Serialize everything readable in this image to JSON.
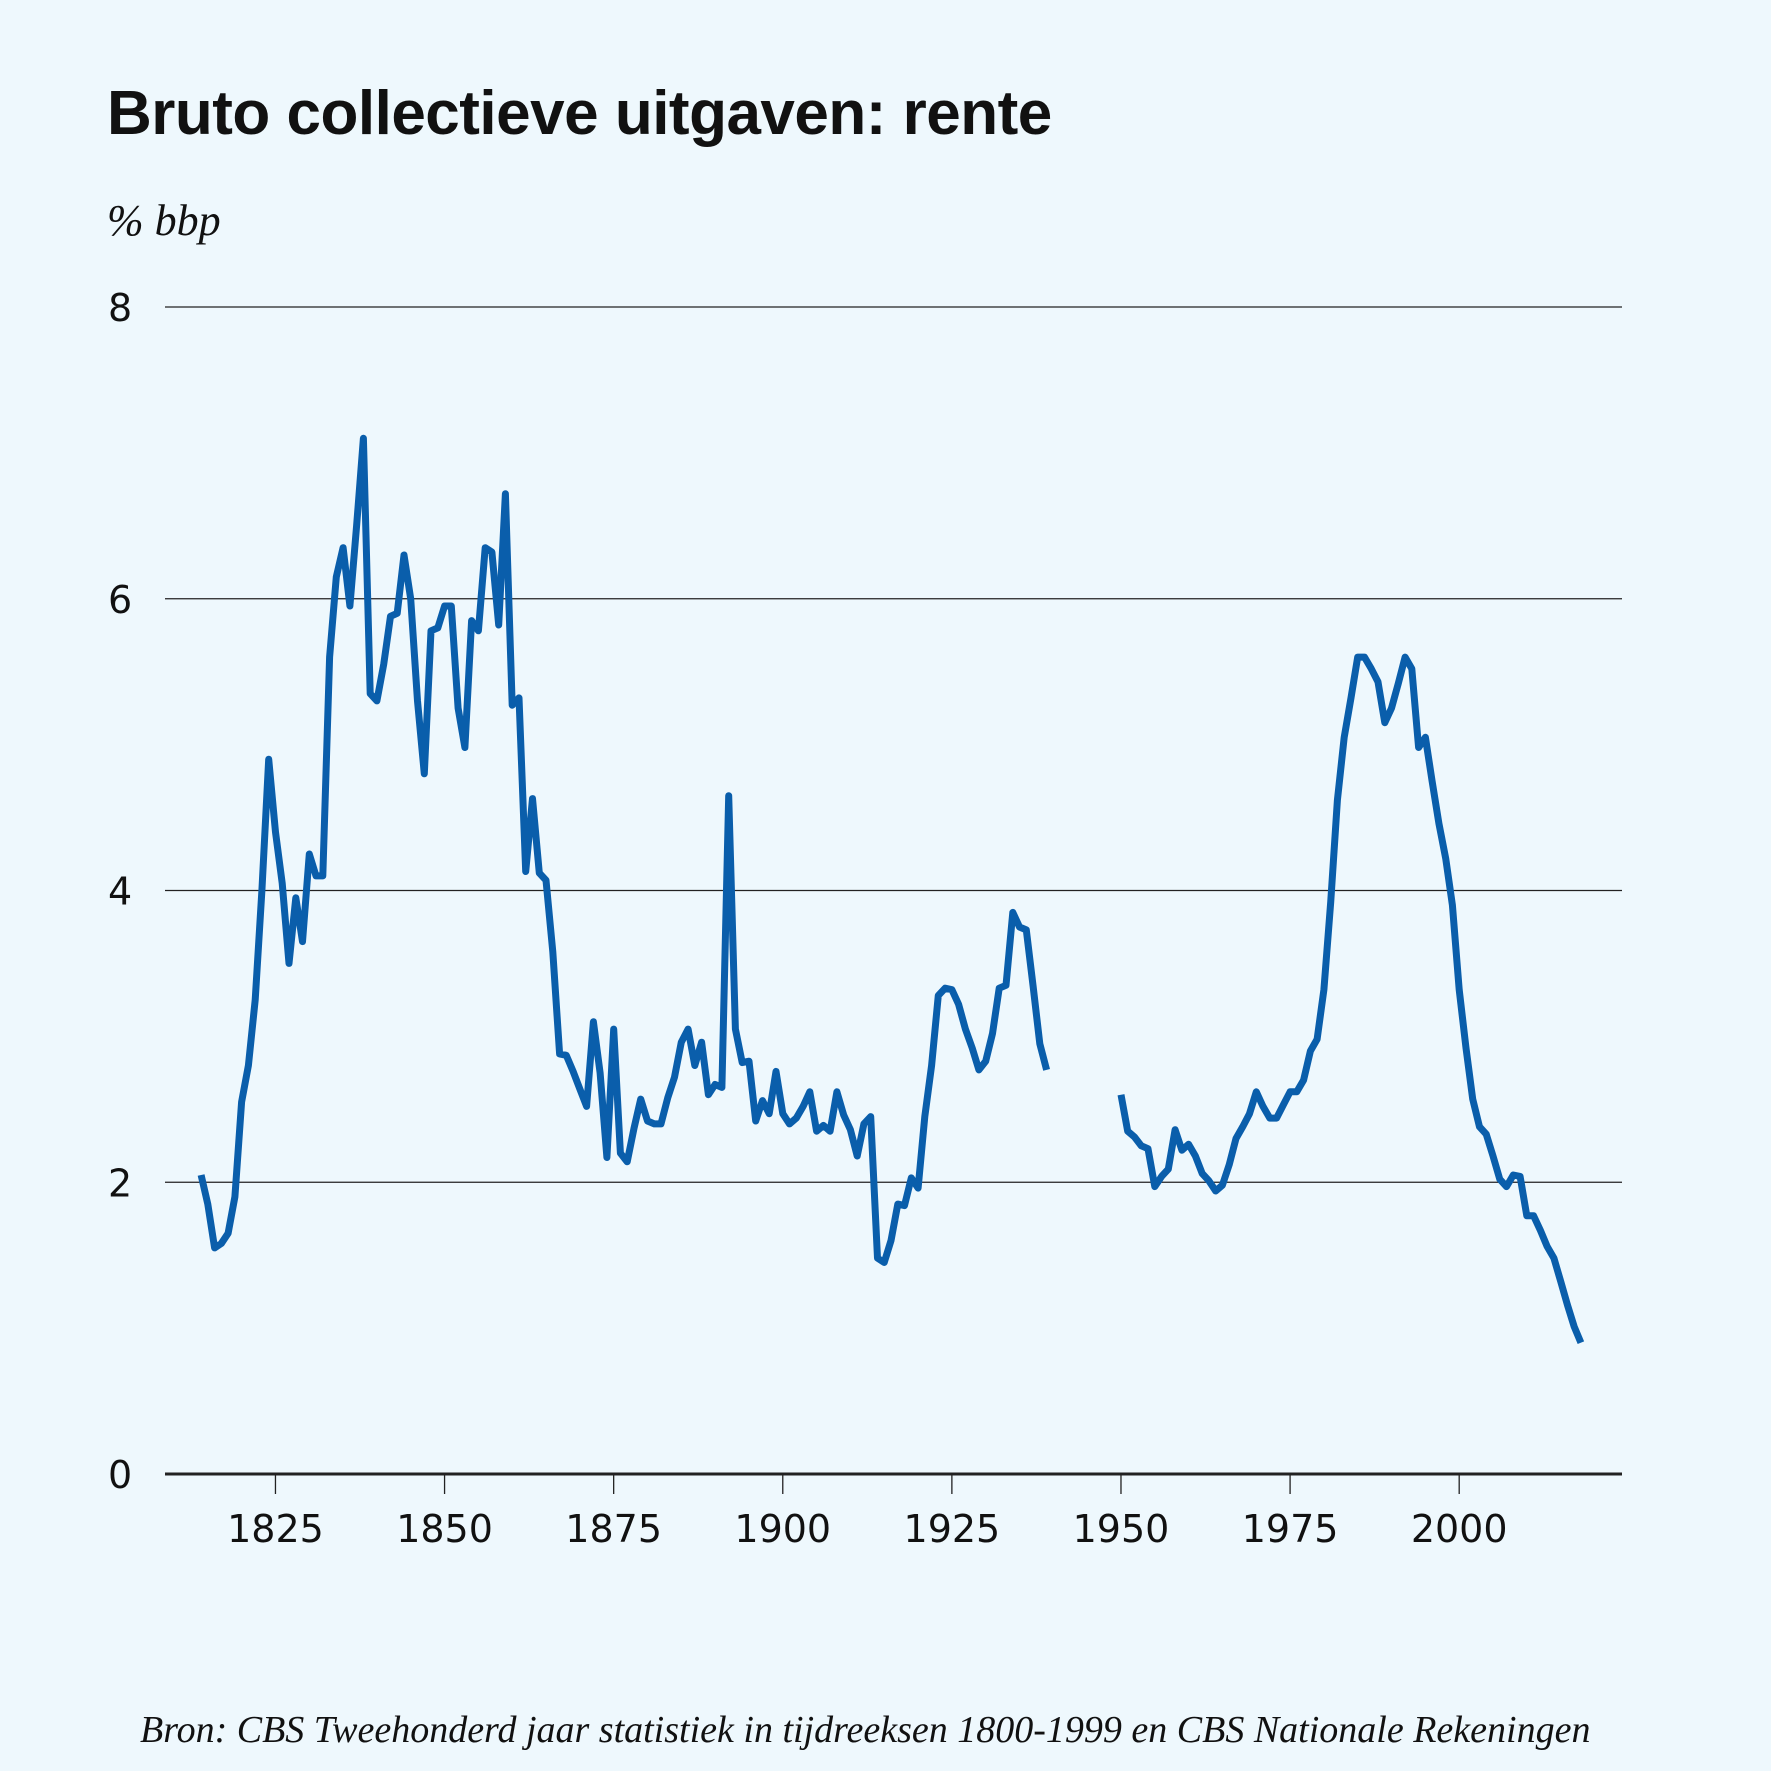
{
  "title": "Bruto collectieve uitgaven: rente",
  "unit_label": "% bbp",
  "source": "Bron: CBS Tweehonderd jaar statistiek in tijdreeksen 1800-1999 en CBS Nationale Rekeningen",
  "colors": {
    "background": "#eef8fd",
    "line": "#0a5eab",
    "grid": "#222222"
  },
  "chart_data": {
    "type": "line",
    "title": "Bruto collectieve uitgaven: rente",
    "xlabel": "",
    "ylabel": "% bbp",
    "xlim": [
      1810,
      2022
    ],
    "ylim": [
      0,
      8
    ],
    "x_ticks": [
      1825,
      1850,
      1875,
      1900,
      1925,
      1950,
      1975,
      2000
    ],
    "y_ticks": [
      0,
      2,
      4,
      6,
      8
    ],
    "grid": "horizontal",
    "legend": "none",
    "series": [
      {
        "segments": [
          [
            [
              1814,
              2.05
            ],
            [
              1815,
              1.85
            ],
            [
              1816,
              1.55
            ],
            [
              1817,
              1.58
            ],
            [
              1818,
              1.65
            ],
            [
              1819,
              1.9
            ],
            [
              1820,
              2.55
            ],
            [
              1821,
              2.8
            ],
            [
              1822,
              3.25
            ],
            [
              1823,
              4.0
            ],
            [
              1824,
              4.9
            ],
            [
              1825,
              4.4
            ],
            [
              1826,
              4.05
            ],
            [
              1827,
              3.5
            ],
            [
              1828,
              3.95
            ],
            [
              1829,
              3.65
            ],
            [
              1830,
              4.25
            ],
            [
              1831,
              4.1
            ],
            [
              1832,
              4.1
            ],
            [
              1833,
              5.6
            ],
            [
              1834,
              6.15
            ],
            [
              1835,
              6.35
            ],
            [
              1836,
              5.95
            ],
            [
              1837,
              6.5
            ],
            [
              1838,
              7.1
            ],
            [
              1839,
              5.35
            ],
            [
              1840,
              5.3
            ],
            [
              1841,
              5.55
            ],
            [
              1842,
              5.88
            ],
            [
              1843,
              5.9
            ],
            [
              1844,
              6.3
            ],
            [
              1845,
              6.0
            ],
            [
              1846,
              5.3
            ],
            [
              1847,
              4.8
            ],
            [
              1848,
              5.78
            ],
            [
              1849,
              5.8
            ],
            [
              1850,
              5.95
            ],
            [
              1851,
              5.95
            ],
            [
              1852,
              5.25
            ],
            [
              1853,
              4.98
            ],
            [
              1854,
              5.85
            ],
            [
              1855,
              5.78
            ],
            [
              1856,
              6.35
            ],
            [
              1857,
              6.32
            ],
            [
              1858,
              5.82
            ],
            [
              1859,
              6.72
            ],
            [
              1860,
              5.27
            ],
            [
              1861,
              5.32
            ],
            [
              1862,
              4.13
            ],
            [
              1863,
              4.63
            ],
            [
              1864,
              4.12
            ],
            [
              1865,
              4.07
            ],
            [
              1866,
              3.58
            ],
            [
              1867,
              2.88
            ],
            [
              1868,
              2.87
            ],
            [
              1869,
              2.76
            ],
            [
              1870,
              2.64
            ],
            [
              1871,
              2.52
            ],
            [
              1872,
              3.1
            ],
            [
              1873,
              2.75
            ],
            [
              1874,
              2.17
            ],
            [
              1875,
              3.05
            ],
            [
              1876,
              2.2
            ],
            [
              1877,
              2.14
            ],
            [
              1878,
              2.37
            ],
            [
              1879,
              2.57
            ],
            [
              1880,
              2.42
            ],
            [
              1881,
              2.4
            ],
            [
              1882,
              2.4
            ],
            [
              1883,
              2.58
            ],
            [
              1884,
              2.72
            ],
            [
              1885,
              2.96
            ],
            [
              1886,
              3.05
            ],
            [
              1887,
              2.8
            ],
            [
              1888,
              2.96
            ],
            [
              1889,
              2.6
            ],
            [
              1890,
              2.67
            ],
            [
              1891,
              2.65
            ],
            [
              1892,
              4.65
            ],
            [
              1893,
              3.05
            ],
            [
              1894,
              2.82
            ],
            [
              1895,
              2.83
            ],
            [
              1896,
              2.42
            ],
            [
              1897,
              2.56
            ],
            [
              1898,
              2.47
            ],
            [
              1899,
              2.76
            ],
            [
              1900,
              2.47
            ],
            [
              1901,
              2.4
            ],
            [
              1902,
              2.44
            ],
            [
              1903,
              2.52
            ],
            [
              1904,
              2.62
            ],
            [
              1905,
              2.35
            ],
            [
              1906,
              2.39
            ],
            [
              1907,
              2.35
            ],
            [
              1908,
              2.62
            ],
            [
              1909,
              2.46
            ],
            [
              1910,
              2.36
            ],
            [
              1911,
              2.18
            ],
            [
              1912,
              2.4
            ],
            [
              1913,
              2.45
            ],
            [
              1914,
              1.48
            ],
            [
              1915,
              1.45
            ],
            [
              1916,
              1.6
            ],
            [
              1917,
              1.85
            ],
            [
              1918,
              1.84
            ],
            [
              1919,
              2.03
            ],
            [
              1920,
              1.96
            ],
            [
              1921,
              2.45
            ],
            [
              1922,
              2.8
            ],
            [
              1923,
              3.28
            ],
            [
              1924,
              3.33
            ],
            [
              1925,
              3.32
            ],
            [
              1926,
              3.22
            ],
            [
              1927,
              3.05
            ],
            [
              1928,
              2.92
            ],
            [
              1929,
              2.77
            ],
            [
              1930,
              2.83
            ],
            [
              1931,
              3.02
            ],
            [
              1932,
              3.33
            ],
            [
              1933,
              3.35
            ],
            [
              1934,
              3.85
            ],
            [
              1935,
              3.75
            ],
            [
              1936,
              3.73
            ],
            [
              1937,
              3.35
            ],
            [
              1938,
              2.95
            ],
            [
              1939,
              2.77
            ]
          ],
          [
            [
              1950,
              2.6
            ],
            [
              1951,
              2.35
            ],
            [
              1952,
              2.31
            ],
            [
              1953,
              2.25
            ],
            [
              1954,
              2.23
            ],
            [
              1955,
              1.97
            ],
            [
              1956,
              2.04
            ],
            [
              1957,
              2.09
            ],
            [
              1958,
              2.36
            ],
            [
              1959,
              2.22
            ],
            [
              1960,
              2.26
            ],
            [
              1961,
              2.18
            ],
            [
              1962,
              2.06
            ],
            [
              1963,
              2.01
            ],
            [
              1964,
              1.94
            ],
            [
              1965,
              1.98
            ],
            [
              1966,
              2.12
            ],
            [
              1967,
              2.3
            ],
            [
              1968,
              2.38
            ],
            [
              1969,
              2.47
            ],
            [
              1970,
              2.62
            ],
            [
              1971,
              2.52
            ],
            [
              1972,
              2.44
            ],
            [
              1973,
              2.44
            ],
            [
              1974,
              2.53
            ],
            [
              1975,
              2.62
            ],
            [
              1976,
              2.62
            ],
            [
              1977,
              2.7
            ],
            [
              1978,
              2.9
            ],
            [
              1979,
              2.98
            ],
            [
              1980,
              3.32
            ],
            [
              1981,
              3.92
            ],
            [
              1982,
              4.62
            ],
            [
              1983,
              5.05
            ],
            [
              1984,
              5.32
            ],
            [
              1985,
              5.6
            ],
            [
              1986,
              5.6
            ],
            [
              1987,
              5.52
            ],
            [
              1988,
              5.43
            ],
            [
              1989,
              5.15
            ],
            [
              1990,
              5.25
            ],
            [
              1991,
              5.42
            ],
            [
              1992,
              5.6
            ],
            [
              1993,
              5.52
            ],
            [
              1994,
              4.98
            ],
            [
              1995,
              5.05
            ],
            [
              1996,
              4.75
            ],
            [
              1997,
              4.46
            ],
            [
              1998,
              4.22
            ],
            [
              1999,
              3.9
            ],
            [
              2000,
              3.32
            ],
            [
              2001,
              2.92
            ],
            [
              2002,
              2.57
            ],
            [
              2003,
              2.38
            ],
            [
              2004,
              2.33
            ],
            [
              2005,
              2.18
            ],
            [
              2006,
              2.02
            ],
            [
              2007,
              1.97
            ],
            [
              2008,
              2.05
            ],
            [
              2009,
              2.04
            ],
            [
              2010,
              1.77
            ],
            [
              2011,
              1.77
            ],
            [
              2012,
              1.67
            ],
            [
              2013,
              1.56
            ],
            [
              2014,
              1.48
            ],
            [
              2015,
              1.32
            ],
            [
              2016,
              1.16
            ],
            [
              2017,
              1.01
            ],
            [
              2018,
              0.9
            ]
          ]
        ]
      }
    ]
  }
}
